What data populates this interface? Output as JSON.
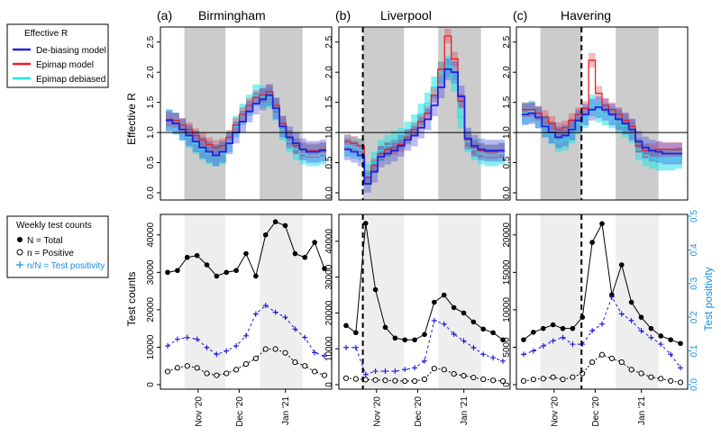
{
  "panels": [
    {
      "tag": "(a)",
      "city": "Birmingham"
    },
    {
      "tag": "(b)",
      "city": "Liverpool"
    },
    {
      "tag": "(c)",
      "city": "Havering"
    }
  ],
  "legend_r": {
    "title": "Effective R",
    "items": [
      {
        "label": "De-biasing model",
        "color": "#2222dd"
      },
      {
        "label": "Epimap model",
        "color": "#e8202a"
      },
      {
        "label": "Epimap debiased",
        "color": "#22e5e5"
      }
    ]
  },
  "legend_counts": {
    "title": "Weekly test counts",
    "items": [
      {
        "label": "N = Total",
        "symbol": "filled-circle",
        "color": "#000000"
      },
      {
        "label": "n = Positive",
        "symbol": "open-circle",
        "color": "#000000"
      },
      {
        "label": "n/N = Test positivity",
        "symbol": "plus",
        "color": "#1a8fe0"
      }
    ]
  },
  "x_tick_labels": [
    "Nov '20",
    "Dec '20",
    "Jan '21"
  ],
  "colors": {
    "band_r": "#cccccc",
    "band_c": "#eeeeee",
    "total": "#000000",
    "positive": "#000000",
    "positivity": "#1a1ad8",
    "right_axis": "#1a8fe0"
  },
  "chart_data": [
    {
      "type": "line",
      "title": "Birmingham",
      "ylabel": "Effective R",
      "ylim": [
        0,
        2.75
      ],
      "yticks": [
        "0.0",
        "0.5",
        "1.0",
        "1.5",
        "2.0",
        "2.5"
      ],
      "reference_line": 1.0,
      "series": [
        {
          "name": "De-biasing model",
          "values": [
            1.2,
            1.15,
            1.05,
            0.95,
            0.85,
            0.75,
            0.68,
            0.62,
            0.68,
            0.82,
            1.0,
            1.18,
            1.35,
            1.48,
            1.55,
            1.62,
            1.4,
            1.1,
            0.92,
            0.82,
            0.72,
            0.68,
            0.68,
            0.7
          ]
        },
        {
          "name": "Epimap model",
          "values": [
            1.22,
            1.2,
            1.12,
            1.05,
            0.95,
            0.88,
            0.8,
            0.75,
            0.78,
            0.92,
            1.12,
            1.3,
            1.45,
            1.58,
            1.62,
            1.68,
            1.45,
            1.15,
            0.92,
            0.78,
            0.72,
            0.7,
            0.7,
            0.72
          ]
        },
        {
          "name": "Epimap debiased",
          "values": [
            1.2,
            1.15,
            1.05,
            0.92,
            0.82,
            0.72,
            0.65,
            0.62,
            0.65,
            0.85,
            1.1,
            1.3,
            1.45,
            1.62,
            1.6,
            1.58,
            1.38,
            1.05,
            0.85,
            0.72,
            0.65,
            0.62,
            0.62,
            0.65
          ]
        }
      ]
    },
    {
      "type": "line",
      "title": "Liverpool",
      "ylim": [
        0,
        2.75
      ],
      "yticks": [
        "0.0",
        "0.5",
        "1.0",
        "1.5",
        "2.0",
        "2.5"
      ],
      "reference_line": 1.0,
      "series": [
        {
          "name": "De-biasing model",
          "values": [
            0.72,
            0.68,
            0.62,
            0.15,
            0.35,
            0.6,
            0.65,
            0.7,
            0.78,
            0.88,
            0.95,
            1.08,
            1.22,
            1.45,
            1.75,
            2.05,
            2.0,
            1.6,
            0.9,
            0.78,
            0.72,
            0.7,
            0.7,
            0.7
          ]
        },
        {
          "name": "Epimap model",
          "values": [
            0.85,
            0.82,
            0.78,
            0.25,
            0.45,
            0.65,
            0.72,
            0.75,
            0.8,
            0.92,
            1.05,
            1.18,
            1.32,
            1.62,
            2.05,
            2.6,
            2.22,
            1.52,
            0.88,
            0.75,
            0.7,
            0.68,
            0.68,
            0.7
          ]
        },
        {
          "name": "Epimap debiased",
          "values": [
            0.78,
            0.75,
            0.72,
            0.3,
            0.5,
            0.7,
            0.78,
            0.85,
            0.9,
            1.0,
            1.12,
            1.3,
            1.48,
            1.75,
            2.0,
            2.1,
            1.85,
            1.25,
            0.85,
            0.72,
            0.65,
            0.62,
            0.62,
            0.65
          ]
        }
      ]
    },
    {
      "type": "line",
      "title": "Havering",
      "ylim": [
        0,
        2.75
      ],
      "yticks": [
        "0.0",
        "0.5",
        "1.0",
        "1.5",
        "2.0",
        "2.5"
      ],
      "reference_line": 1.0,
      "series": [
        {
          "name": "De-biasing model",
          "values": [
            1.3,
            1.32,
            1.25,
            1.1,
            1.0,
            0.92,
            0.95,
            1.05,
            1.2,
            1.3,
            1.38,
            1.42,
            1.38,
            1.3,
            1.22,
            1.15,
            1.05,
            0.85,
            0.75,
            0.7,
            0.68,
            0.65,
            0.65,
            0.65
          ]
        },
        {
          "name": "Epimap model",
          "values": [
            1.38,
            1.38,
            1.32,
            1.25,
            1.15,
            1.05,
            1.08,
            1.2,
            1.3,
            1.4,
            2.2,
            1.65,
            1.45,
            1.38,
            1.3,
            1.2,
            1.1,
            0.78,
            0.7,
            0.7,
            0.72,
            0.72,
            0.72,
            0.72
          ]
        },
        {
          "name": "Epimap debiased",
          "values": [
            1.32,
            1.35,
            1.25,
            1.1,
            0.98,
            0.85,
            0.88,
            1.0,
            1.15,
            1.25,
            1.45,
            1.35,
            1.3,
            1.25,
            1.18,
            1.1,
            1.0,
            0.72,
            0.62,
            0.58,
            0.55,
            0.55,
            0.55,
            0.58
          ]
        }
      ]
    },
    {
      "type": "line",
      "title": "Birmingham",
      "ylabel": "Test counts",
      "ylim": [
        0,
        45000
      ],
      "yticks": [
        "0",
        "10000",
        "20000",
        "30000",
        "40000"
      ],
      "ytick_values": [
        0,
        10000,
        20000,
        30000,
        40000
      ],
      "y2lim": [
        0,
        0.5
      ],
      "series": [
        {
          "name": "N = Total",
          "values": [
            30000,
            30500,
            34000,
            34500,
            32000,
            29000,
            30000,
            30500,
            35000,
            29000,
            40000,
            43500,
            42500,
            35000,
            34000,
            38000,
            31000
          ]
        },
        {
          "name": "n = Positive",
          "values": [
            3500,
            4500,
            5000,
            4500,
            3000,
            2500,
            3000,
            4000,
            5500,
            7000,
            9500,
            9500,
            8500,
            6000,
            5000,
            3500,
            2500
          ]
        },
        {
          "name": "n/N = Test positivity",
          "values": [
            0.115,
            0.135,
            0.14,
            0.135,
            0.11,
            0.09,
            0.1,
            0.115,
            0.145,
            0.21,
            0.235,
            0.215,
            0.2,
            0.165,
            0.14,
            0.095,
            0.085
          ]
        }
      ]
    },
    {
      "type": "line",
      "title": "Liverpool",
      "ylim": [
        0,
        47000
      ],
      "yticks": [
        "0",
        "10000",
        "20000",
        "30000",
        "40000"
      ],
      "ytick_values": [
        0,
        10000,
        20000,
        30000,
        40000
      ],
      "y2lim": [
        0,
        0.5
      ],
      "series": [
        {
          "name": "N = Total",
          "values": [
            16500,
            14500,
            45000,
            26500,
            16000,
            13000,
            12500,
            12500,
            14000,
            23000,
            25000,
            21500,
            20000,
            17500,
            15500,
            14500,
            12500
          ]
        },
        {
          "name": "n = Positive",
          "values": [
            1800,
            1600,
            1400,
            1300,
            1200,
            1100,
            1000,
            1000,
            1500,
            4500,
            4200,
            3000,
            2500,
            2000,
            1500,
            1200,
            1000
          ]
        },
        {
          "name": "n/N = Test positivity",
          "values": [
            0.11,
            0.11,
            0.03,
            0.04,
            0.04,
            0.04,
            0.045,
            0.05,
            0.07,
            0.19,
            0.18,
            0.15,
            0.13,
            0.11,
            0.09,
            0.08,
            0.07
          ]
        }
      ]
    },
    {
      "type": "line",
      "title": "Havering",
      "ylim": [
        0,
        22500
      ],
      "yticks": [
        "0",
        "5000",
        "10000",
        "15000",
        "20000"
      ],
      "ytick_values": [
        0,
        5000,
        10000,
        15000,
        20000
      ],
      "y2lim": [
        0,
        0.5
      ],
      "y2label": "Test positivity",
      "y2ticks": [
        "0.0",
        "0.1",
        "0.2",
        "0.3",
        "0.4",
        "0.5"
      ],
      "series": [
        {
          "name": "N = Total",
          "values": [
            6000,
            7000,
            7500,
            8000,
            7500,
            7500,
            9000,
            19000,
            21500,
            12000,
            16000,
            11000,
            9000,
            7500,
            6500,
            6000,
            5500
          ]
        },
        {
          "name": "n = Positive",
          "values": [
            500,
            700,
            800,
            1000,
            700,
            1000,
            1500,
            3000,
            4000,
            3500,
            3000,
            2000,
            1500,
            1000,
            800,
            500,
            300
          ]
        },
        {
          "name": "n/N = Test positivity",
          "values": [
            0.09,
            0.1,
            0.115,
            0.13,
            0.14,
            0.12,
            0.12,
            0.16,
            0.18,
            0.26,
            0.21,
            0.19,
            0.16,
            0.14,
            0.12,
            0.09,
            0.05
          ]
        }
      ]
    }
  ]
}
